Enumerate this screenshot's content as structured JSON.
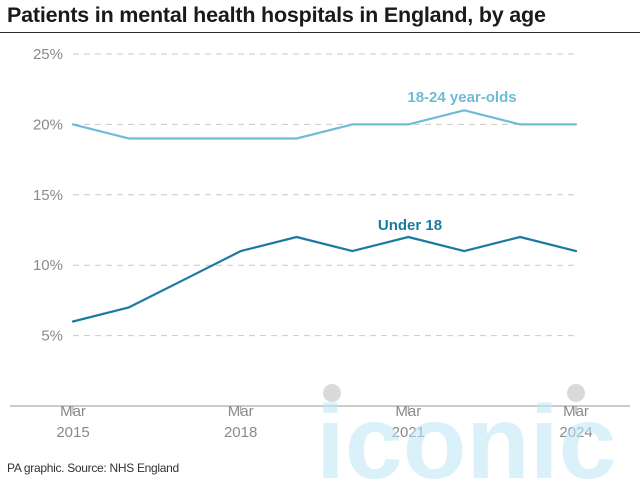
{
  "title": "Patients in mental health hospitals in England, by age",
  "footer": "PA graphic. Source: NHS England",
  "watermark": "iconic",
  "chart_data": {
    "type": "line",
    "title": "Patients in mental health hospitals in England, by age",
    "xlabel": "",
    "ylabel": "",
    "x": [
      "Mar 2015",
      "Mar 2016",
      "Mar 2017",
      "Mar 2018",
      "Mar 2019",
      "Mar 2020",
      "Mar 2021",
      "Mar 2022",
      "Mar 2023",
      "Mar 2024"
    ],
    "x_ticks": [
      {
        "index": 0,
        "line1": "Mar",
        "line2": "2015"
      },
      {
        "index": 3,
        "line1": "Mar",
        "line2": "2018"
      },
      {
        "index": 6,
        "line1": "Mar",
        "line2": "2021"
      },
      {
        "index": 9,
        "line1": "Mar",
        "line2": "2024"
      }
    ],
    "y_ticks": [
      5,
      10,
      15,
      20,
      25
    ],
    "y_tick_labels": [
      "5%",
      "10%",
      "15%",
      "20%",
      "25%"
    ],
    "ylim": [
      0,
      25
    ],
    "grid": true,
    "series": [
      {
        "name": "18-24 year-olds",
        "color": "#6fbcd9",
        "values": [
          20,
          19,
          19,
          19,
          19,
          20,
          20,
          21,
          20,
          20
        ]
      },
      {
        "name": "Under 18",
        "color": "#1a7aa2",
        "values": [
          6,
          7,
          9,
          11,
          12,
          11,
          12,
          11,
          12,
          11
        ]
      }
    ]
  }
}
